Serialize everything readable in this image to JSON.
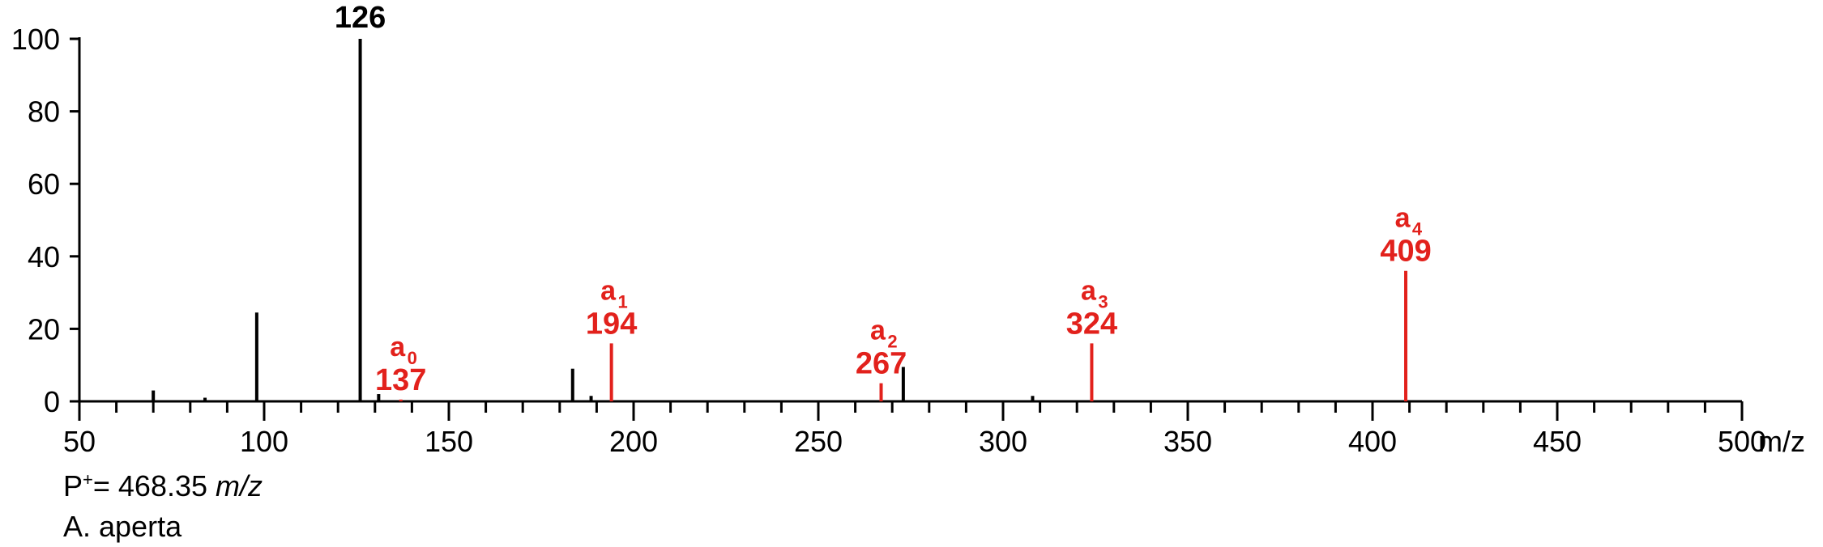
{
  "colors": {
    "axis": "#000000",
    "peak": "#000000",
    "annotated": "#e2211c"
  },
  "chart_data": {
    "type": "bar",
    "xlim": [
      50,
      500
    ],
    "ylim": [
      0,
      100
    ],
    "x_ticks": [
      50,
      100,
      150,
      200,
      250,
      300,
      350,
      400,
      450,
      500
    ],
    "y_ticks": [
      0,
      20,
      40,
      60,
      80,
      100
    ],
    "x_minor_step": 10,
    "x_unit": "m/z",
    "peaks": [
      {
        "mz": 70,
        "intensity": 3
      },
      {
        "mz": 84,
        "intensity": 1
      },
      {
        "mz": 98,
        "intensity": 24.5
      },
      {
        "mz": 126,
        "intensity": 100,
        "label": "126"
      },
      {
        "mz": 131,
        "intensity": 2
      },
      {
        "mz": 183.5,
        "intensity": 9
      },
      {
        "mz": 188.5,
        "intensity": 1.5
      },
      {
        "mz": 273,
        "intensity": 9.5
      },
      {
        "mz": 308,
        "intensity": 1.5
      }
    ],
    "annotated_peaks": [
      {
        "mz": 137,
        "intensity": 0.5,
        "label": "137",
        "ion": "a",
        "sub": "0"
      },
      {
        "mz": 194,
        "intensity": 16,
        "label": "194",
        "ion": "a",
        "sub": "1"
      },
      {
        "mz": 267,
        "intensity": 5,
        "label": "267",
        "ion": "a",
        "sub": "2"
      },
      {
        "mz": 324,
        "intensity": 16,
        "label": "324",
        "ion": "a",
        "sub": "3"
      },
      {
        "mz": 409,
        "intensity": 36,
        "label": "409",
        "ion": "a",
        "sub": "4"
      }
    ]
  },
  "caption": {
    "precursor_prefix": "P",
    "precursor_sup": "+",
    "precursor_value": "= 468.35 ",
    "precursor_unit": "m/z",
    "species": "A. aperta"
  }
}
